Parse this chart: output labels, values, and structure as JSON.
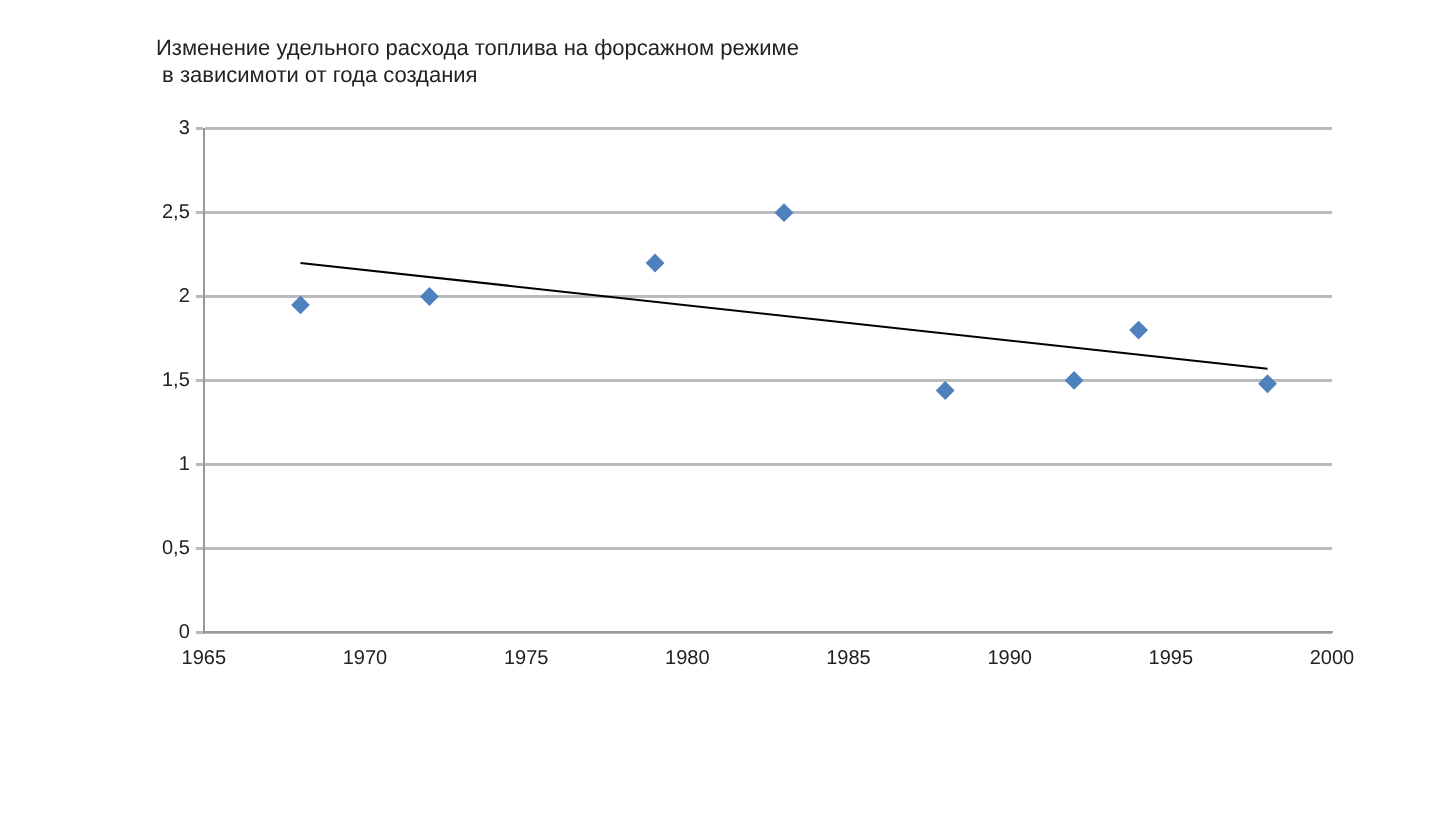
{
  "chart_data": {
    "type": "scatter",
    "title": "Изменение удельного расхода топлива на форсажном режиме\n в зависимоти от года создания",
    "series": [
      {
        "color": "#4f81bd",
        "marker": "diamond",
        "x": [
          1968,
          1972,
          1979,
          1983,
          1988,
          1992,
          1994,
          1998
        ],
        "values": [
          1.95,
          2.0,
          2.2,
          2.5,
          1.44,
          1.5,
          1.8,
          1.48
        ]
      },
      {
        "type": "line",
        "color": "#000000",
        "marker": "none",
        "x": [
          1968,
          1998
        ],
        "values": [
          2.2,
          1.57
        ]
      }
    ],
    "xlim": [
      1965,
      2000
    ],
    "xticks": [
      1965,
      1970,
      1975,
      1980,
      1985,
      1990,
      1995,
      2000
    ],
    "ylim": [
      0,
      3
    ],
    "yticks": [
      0,
      {
        "value": 0.5,
        "label": "0,5"
      },
      1,
      {
        "value": 1.5,
        "label": "1,5"
      },
      2,
      {
        "value": 2.5,
        "label": "2,5"
      },
      3
    ],
    "grid": "y",
    "legend": false
  }
}
